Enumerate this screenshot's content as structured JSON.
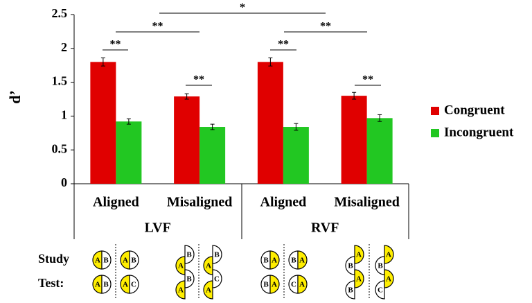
{
  "chart_data": {
    "type": "bar",
    "y_label": "d’",
    "categories": [
      "Aligned",
      "Misaligned",
      "Aligned",
      "Misaligned"
    ],
    "groups": [
      "LVF",
      "RVF"
    ],
    "series": [
      {
        "name": "Congruent",
        "color": "#e00000",
        "values": [
          1.8,
          1.29,
          1.8,
          1.3
        ],
        "errors": [
          0.06,
          0.04,
          0.06,
          0.05
        ]
      },
      {
        "name": "Incongruent",
        "color": "#22c722",
        "values": [
          0.92,
          0.84,
          0.84,
          0.97
        ],
        "errors": [
          0.04,
          0.04,
          0.05,
          0.05
        ]
      }
    ],
    "ylim": [
      0,
      2.5
    ],
    "yticks": [
      0,
      0.5,
      1,
      1.5,
      2,
      2.5
    ],
    "significance": [
      "**",
      "**",
      "**",
      "**",
      "**",
      "**",
      "*"
    ],
    "row_labels": [
      "Study",
      "Test:"
    ],
    "stimuli": [
      {
        "study": [
          "A",
          "B"
        ],
        "test": [
          "A",
          "B"
        ]
      },
      {
        "study": [
          "A",
          "B"
        ],
        "test": [
          "A",
          "C"
        ]
      },
      {
        "study": [
          "A",
          "B"
        ],
        "test": [
          "A",
          "B"
        ]
      },
      {
        "study": [
          "A",
          "B"
        ],
        "test": [
          "A",
          "C"
        ]
      },
      {
        "study": [
          "B",
          "A"
        ],
        "test": [
          "B",
          "A"
        ]
      },
      {
        "study": [
          "B",
          "A"
        ],
        "test": [
          "C",
          "A"
        ]
      },
      {
        "study": [
          "B",
          "A"
        ],
        "test": [
          "B",
          "A"
        ]
      },
      {
        "study": [
          "B",
          "A"
        ],
        "test": [
          "C",
          "A"
        ]
      }
    ]
  }
}
